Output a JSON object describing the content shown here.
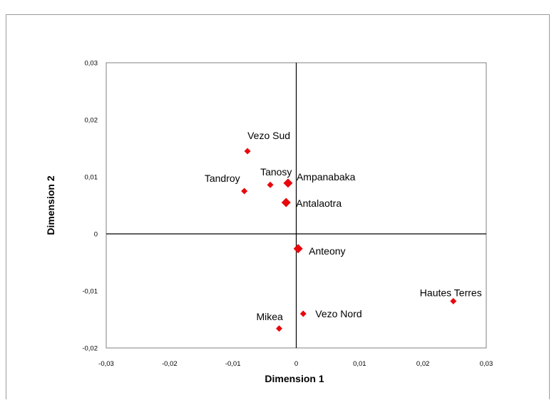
{
  "chart_data": {
    "type": "scatter",
    "title": "",
    "xlabel": "Dimension 1",
    "ylabel": "Dimension 2",
    "xlim": [
      -0.03,
      0.03
    ],
    "ylim": [
      -0.02,
      0.03
    ],
    "x_ticks": [
      -0.03,
      -0.02,
      -0.01,
      0,
      0.01,
      0.02,
      0.03
    ],
    "y_ticks": [
      -0.02,
      -0.01,
      0,
      0.01,
      0.02,
      0.03
    ],
    "x_tick_labels": [
      "-0,03",
      "-0,02",
      "-0,01",
      "0",
      "0,01",
      "0,02",
      "0,03"
    ],
    "y_tick_labels": [
      "-0,02",
      "-0,01",
      "0",
      "0,01",
      "0,02",
      "0,03"
    ],
    "grid": false,
    "legend": "none",
    "marker_color": "#e8080c",
    "points": [
      {
        "label": "Vezo Sud",
        "x": -0.0077,
        "y": 0.0145,
        "size": "small"
      },
      {
        "label": "Tanosy",
        "x": -0.0041,
        "y": 0.0086,
        "size": "small"
      },
      {
        "label": "Tandroy",
        "x": -0.0082,
        "y": 0.0075,
        "size": "small"
      },
      {
        "label": "Ampanabaka",
        "x": -0.0013,
        "y": 0.0089,
        "size": "large"
      },
      {
        "label": "Antalaotra",
        "x": -0.0016,
        "y": 0.0055,
        "size": "large"
      },
      {
        "label": "Anteony",
        "x": 0.0003,
        "y": -0.0026,
        "size": "large"
      },
      {
        "label": "Vezo Nord",
        "x": 0.0011,
        "y": -0.014,
        "size": "small"
      },
      {
        "label": "Mikea",
        "x": -0.0027,
        "y": -0.0166,
        "size": "small"
      },
      {
        "label": "Hautes Terres",
        "x": 0.0248,
        "y": -0.0118,
        "size": "small"
      }
    ]
  }
}
